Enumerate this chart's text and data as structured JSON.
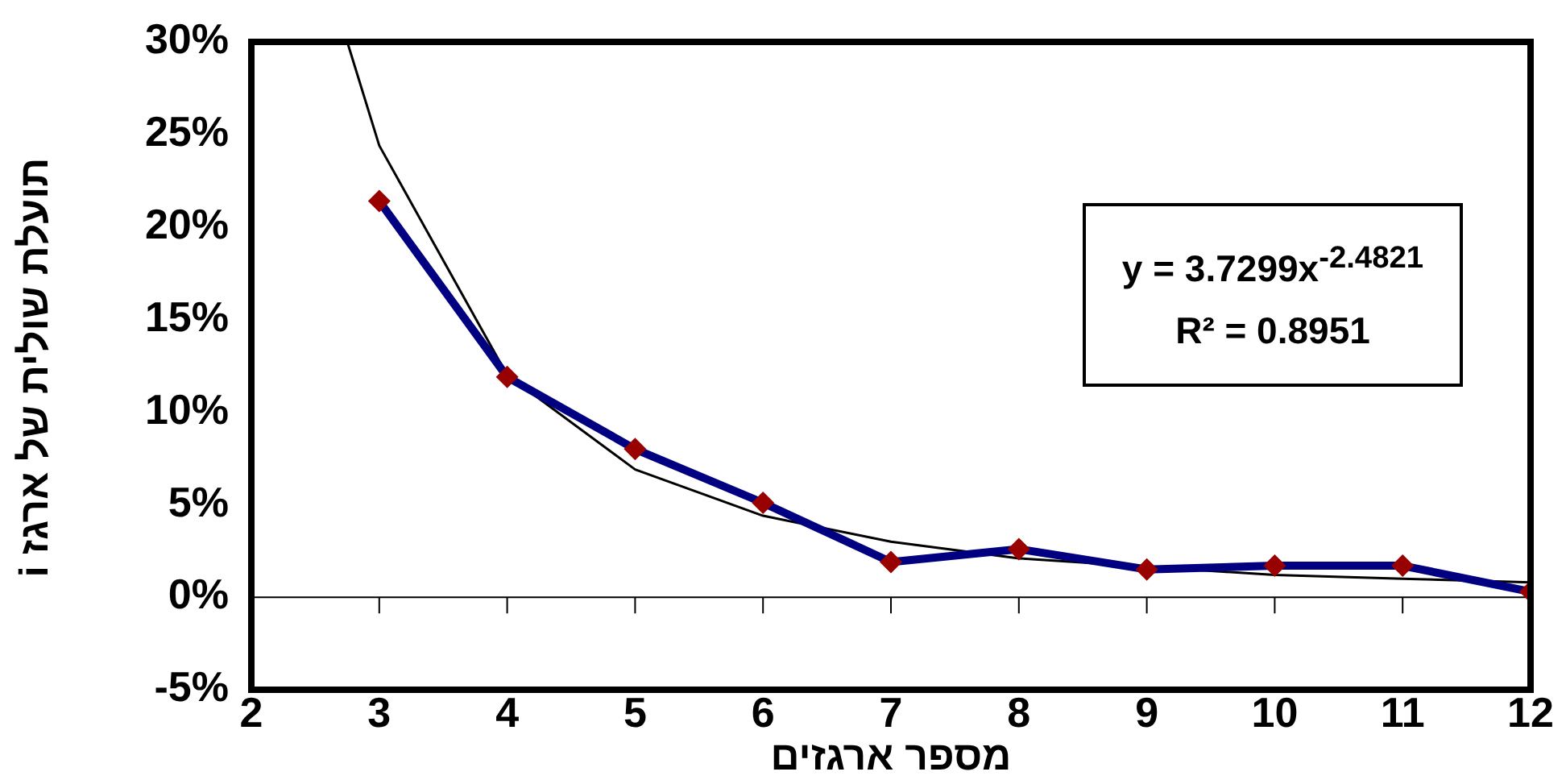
{
  "chart_data": {
    "type": "line",
    "xlabel": "מספר ארגזים",
    "ylabel": "תועלת שולית של ארגז i",
    "annotations": [
      "y = 3.7299x$^{-2.4821}$",
      "R² = 0.8951"
    ],
    "x": [
      3,
      4,
      5,
      6,
      7,
      8,
      9,
      10,
      11,
      12
    ],
    "series": [
      {
        "color": "#000080",
        "values": [
          21.4,
          11.9,
          8.0,
          5.1,
          1.9,
          2.6,
          1.5,
          1.7,
          1.7,
          0.3
        ],
        "marker": "diamond"
      },
      {
        "type": "line",
        "color": "#000000",
        "x": [
          2.75,
          3,
          4,
          5,
          6,
          7,
          8,
          10,
          11,
          12
        ],
        "values": [
          30,
          24.4,
          12.0,
          6.9,
          4.4,
          3.0,
          2.1,
          1.2,
          1.0,
          0.8
        ],
        "marker": "none"
      }
    ],
    "xlim": [
      2,
      12
    ],
    "xticks": [
      2,
      3,
      4,
      5,
      6,
      7,
      8,
      9,
      10,
      11,
      12
    ],
    "ylim": [
      -5,
      30
    ],
    "yticks": [
      {
        "value": -5,
        "label": "-5%"
      },
      {
        "value": 0,
        "label": "0%"
      },
      {
        "value": 5,
        "label": "5%"
      },
      {
        "value": 10,
        "label": "10%"
      },
      {
        "value": 15,
        "label": "15%"
      },
      {
        "value": 20,
        "label": "20%"
      },
      {
        "value": 25,
        "label": "25%"
      },
      {
        "value": 30,
        "label": "30%"
      }
    ],
    "ref_lines": [
      {
        "axis": "y",
        "value": 0,
        "color": "#000000"
      }
    ],
    "grid": false,
    "legend": false
  }
}
